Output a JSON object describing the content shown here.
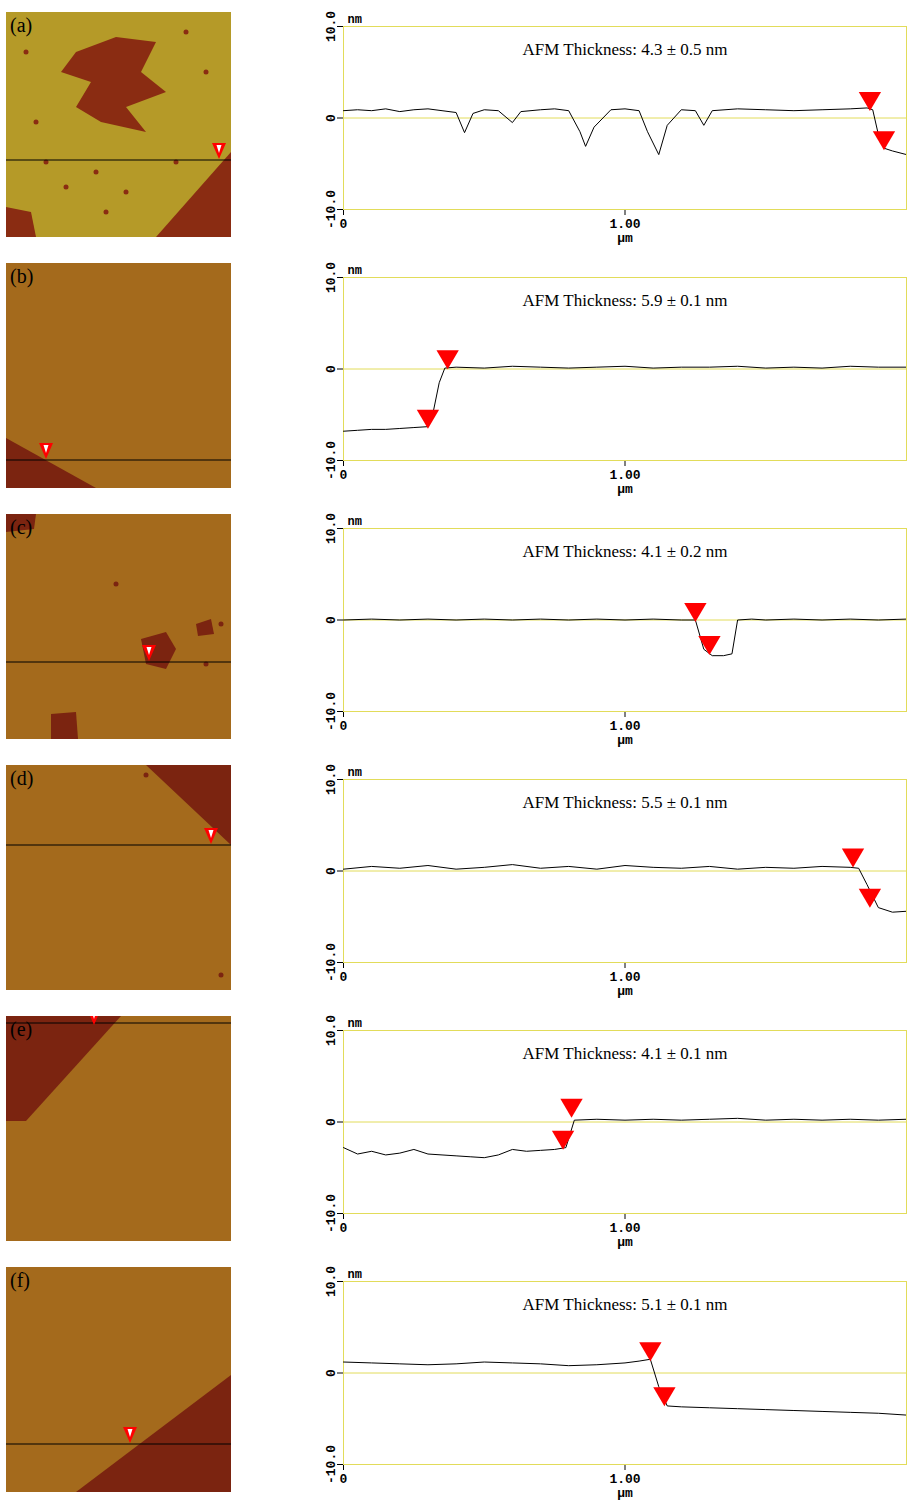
{
  "chart_data": [
    {
      "type": "line",
      "panel": "(a)",
      "title": "AFM Thickness: 4.3 ± 0.5 nm",
      "x_label": "μm",
      "y_label": "nm",
      "color": "#000000",
      "xlim": [
        0,
        2
      ],
      "xticks": [
        0,
        {
          "value": 1,
          "label": "1.00"
        }
      ],
      "ylim": [
        -10,
        10
      ],
      "yticks": [
        {
          "value": -10,
          "label": "-10.0"
        },
        0,
        {
          "value": 10,
          "label": "10.0"
        }
      ],
      "x": [
        0,
        0.05,
        0.1,
        0.15,
        0.2,
        0.25,
        0.3,
        0.35,
        0.4,
        0.43,
        0.46,
        0.5,
        0.55,
        0.6,
        0.63,
        0.7,
        0.75,
        0.8,
        0.84,
        0.86,
        0.89,
        0.95,
        1.0,
        1.05,
        1.08,
        1.12,
        1.15,
        1.2,
        1.25,
        1.28,
        1.31,
        1.4,
        1.5,
        1.6,
        1.7,
        1.8,
        1.86,
        1.88,
        1.9,
        1.92,
        1.95,
        2.0
      ],
      "values": [
        0.8,
        0.9,
        0.8,
        1.0,
        0.7,
        0.9,
        1.0,
        0.8,
        0.6,
        -1.6,
        0.5,
        0.9,
        0.8,
        -0.5,
        0.7,
        0.9,
        1.0,
        0.8,
        -1.5,
        -3.1,
        -1.0,
        0.9,
        1.0,
        0.8,
        -1.5,
        -4.0,
        -0.8,
        0.9,
        0.8,
        -0.8,
        0.8,
        1.0,
        0.9,
        0.8,
        0.9,
        1.0,
        1.1,
        0.9,
        -1.8,
        -3.3,
        -3.6,
        -4.0
      ],
      "cursors": [
        {
          "x": 1.87,
          "y": 1.0
        },
        {
          "x": 1.92,
          "y": -3.3
        }
      ]
    },
    {
      "type": "line",
      "panel": "(b)",
      "title": "AFM Thickness: 5.9 ± 0.1 nm",
      "x_label": "μm",
      "y_label": "nm",
      "color": "#000000",
      "xlim": [
        0,
        2
      ],
      "xticks": [
        0,
        {
          "value": 1,
          "label": "1.00"
        }
      ],
      "ylim": [
        -10,
        10
      ],
      "yticks": [
        {
          "value": -10,
          "label": "-10.0"
        },
        0,
        {
          "value": 10,
          "label": "10.0"
        }
      ],
      "x": [
        0,
        0.05,
        0.1,
        0.15,
        0.2,
        0.25,
        0.3,
        0.32,
        0.34,
        0.36,
        0.4,
        0.5,
        0.6,
        0.7,
        0.8,
        0.9,
        1.0,
        1.1,
        1.2,
        1.3,
        1.4,
        1.5,
        1.6,
        1.7,
        1.8,
        1.9,
        2.0
      ],
      "values": [
        -6.8,
        -6.7,
        -6.6,
        -6.6,
        -6.5,
        -6.4,
        -6.3,
        -4.5,
        -1.5,
        0.1,
        0.2,
        0.1,
        0.3,
        0.2,
        0.1,
        0.2,
        0.3,
        0.1,
        0.2,
        0.2,
        0.3,
        0.1,
        0.2,
        0.1,
        0.3,
        0.2,
        0.2
      ],
      "cursors": [
        {
          "x": 0.3,
          "y": -6.3
        },
        {
          "x": 0.37,
          "y": 0.2
        }
      ]
    },
    {
      "type": "line",
      "panel": "(c)",
      "title": "AFM Thickness: 4.1 ± 0.2 nm",
      "x_label": "μm",
      "y_label": "nm",
      "color": "#000000",
      "xlim": [
        0,
        2
      ],
      "xticks": [
        0,
        {
          "value": 1,
          "label": "1.00"
        }
      ],
      "ylim": [
        -10,
        10
      ],
      "yticks": [
        {
          "value": -10,
          "label": "-10.0"
        },
        0,
        {
          "value": 10,
          "label": "10.0"
        }
      ],
      "x": [
        0,
        0.1,
        0.2,
        0.3,
        0.4,
        0.5,
        0.6,
        0.7,
        0.8,
        0.9,
        1.0,
        1.1,
        1.2,
        1.25,
        1.28,
        1.31,
        1.35,
        1.38,
        1.4,
        1.45,
        1.5,
        1.6,
        1.7,
        1.8,
        1.9,
        2.0
      ],
      "values": [
        0,
        0.1,
        0,
        0.1,
        0,
        0.1,
        0,
        0.1,
        0,
        0.1,
        0,
        0.1,
        0,
        0,
        -3.2,
        -3.9,
        -3.9,
        -3.7,
        0,
        0.1,
        0,
        0.1,
        0,
        0.1,
        0,
        0.1
      ],
      "cursors": [
        {
          "x": 1.25,
          "y": 0
        },
        {
          "x": 1.3,
          "y": -3.6
        }
      ]
    },
    {
      "type": "line",
      "panel": "(d)",
      "title": "AFM Thickness: 5.5 ± 0.1 nm",
      "x_label": "μm",
      "y_label": "nm",
      "color": "#000000",
      "xlim": [
        0,
        2
      ],
      "xticks": [
        0,
        {
          "value": 1,
          "label": "1.00"
        }
      ],
      "ylim": [
        -10,
        10
      ],
      "yticks": [
        {
          "value": -10,
          "label": "-10.0"
        },
        0,
        {
          "value": 10,
          "label": "10.0"
        }
      ],
      "x": [
        0,
        0.1,
        0.2,
        0.3,
        0.4,
        0.5,
        0.6,
        0.7,
        0.8,
        0.9,
        1.0,
        1.1,
        1.2,
        1.3,
        1.4,
        1.5,
        1.6,
        1.7,
        1.8,
        1.83,
        1.86,
        1.9,
        1.95,
        2.0
      ],
      "values": [
        0.2,
        0.5,
        0.3,
        0.6,
        0.2,
        0.4,
        0.7,
        0.3,
        0.5,
        0.2,
        0.6,
        0.4,
        0.3,
        0.5,
        0.2,
        0.4,
        0.3,
        0.5,
        0.4,
        0.3,
        -1.5,
        -4.0,
        -4.5,
        -4.4
      ],
      "cursors": [
        {
          "x": 1.81,
          "y": 0.6
        },
        {
          "x": 1.87,
          "y": -3.8
        }
      ]
    },
    {
      "type": "line",
      "panel": "(e)",
      "title": "AFM Thickness: 4.1 ± 0.1 nm",
      "x_label": "μm",
      "y_label": "nm",
      "color": "#000000",
      "xlim": [
        0,
        2
      ],
      "xticks": [
        0,
        {
          "value": 1,
          "label": "1.00"
        }
      ],
      "ylim": [
        -10,
        10
      ],
      "yticks": [
        {
          "value": -10,
          "label": "-10.0"
        },
        0,
        {
          "value": 10,
          "label": "10.0"
        }
      ],
      "x": [
        0,
        0.05,
        0.1,
        0.15,
        0.2,
        0.25,
        0.3,
        0.35,
        0.4,
        0.45,
        0.5,
        0.55,
        0.6,
        0.65,
        0.7,
        0.75,
        0.79,
        0.82,
        0.9,
        1.0,
        1.1,
        1.2,
        1.3,
        1.4,
        1.5,
        1.6,
        1.7,
        1.8,
        1.9,
        2.0
      ],
      "values": [
        -2.8,
        -3.5,
        -3.2,
        -3.6,
        -3.4,
        -3.0,
        -3.5,
        -3.6,
        -3.7,
        -3.8,
        -3.9,
        -3.6,
        -3.0,
        -3.2,
        -3.1,
        -3.0,
        -2.8,
        0.2,
        0.3,
        0.2,
        0.3,
        0.2,
        0.3,
        0.4,
        0.2,
        0.3,
        0.2,
        0.3,
        0.2,
        0.3
      ],
      "cursors": [
        {
          "x": 0.78,
          "y": -2.8
        },
        {
          "x": 0.81,
          "y": 0.7
        }
      ]
    },
    {
      "type": "line",
      "panel": "(f)",
      "title": "AFM Thickness: 5.1 ± 0.1 nm",
      "x_label": "μm",
      "y_label": "nm",
      "color": "#000000",
      "xlim": [
        0,
        2
      ],
      "xticks": [
        0,
        {
          "value": 1,
          "label": "1.00"
        }
      ],
      "ylim": [
        -10,
        10
      ],
      "yticks": [
        {
          "value": -10,
          "label": "-10.0"
        },
        0,
        {
          "value": 10,
          "label": "10.0"
        }
      ],
      "x": [
        0,
        0.1,
        0.2,
        0.3,
        0.4,
        0.5,
        0.6,
        0.7,
        0.8,
        0.9,
        1.0,
        1.05,
        1.09,
        1.12,
        1.15,
        1.2,
        1.3,
        1.4,
        1.5,
        1.6,
        1.7,
        1.8,
        1.9,
        2.0
      ],
      "values": [
        1.2,
        1.1,
        1.0,
        0.9,
        1.0,
        1.2,
        1.1,
        1.0,
        0.8,
        0.9,
        1.1,
        1.3,
        1.5,
        -1.5,
        -3.6,
        -3.7,
        -3.8,
        -3.9,
        -4.0,
        -4.1,
        -4.2,
        -4.3,
        -4.4,
        -4.6
      ],
      "cursors": [
        {
          "x": 1.09,
          "y": 1.5
        },
        {
          "x": 1.14,
          "y": -3.4
        }
      ]
    }
  ]
}
